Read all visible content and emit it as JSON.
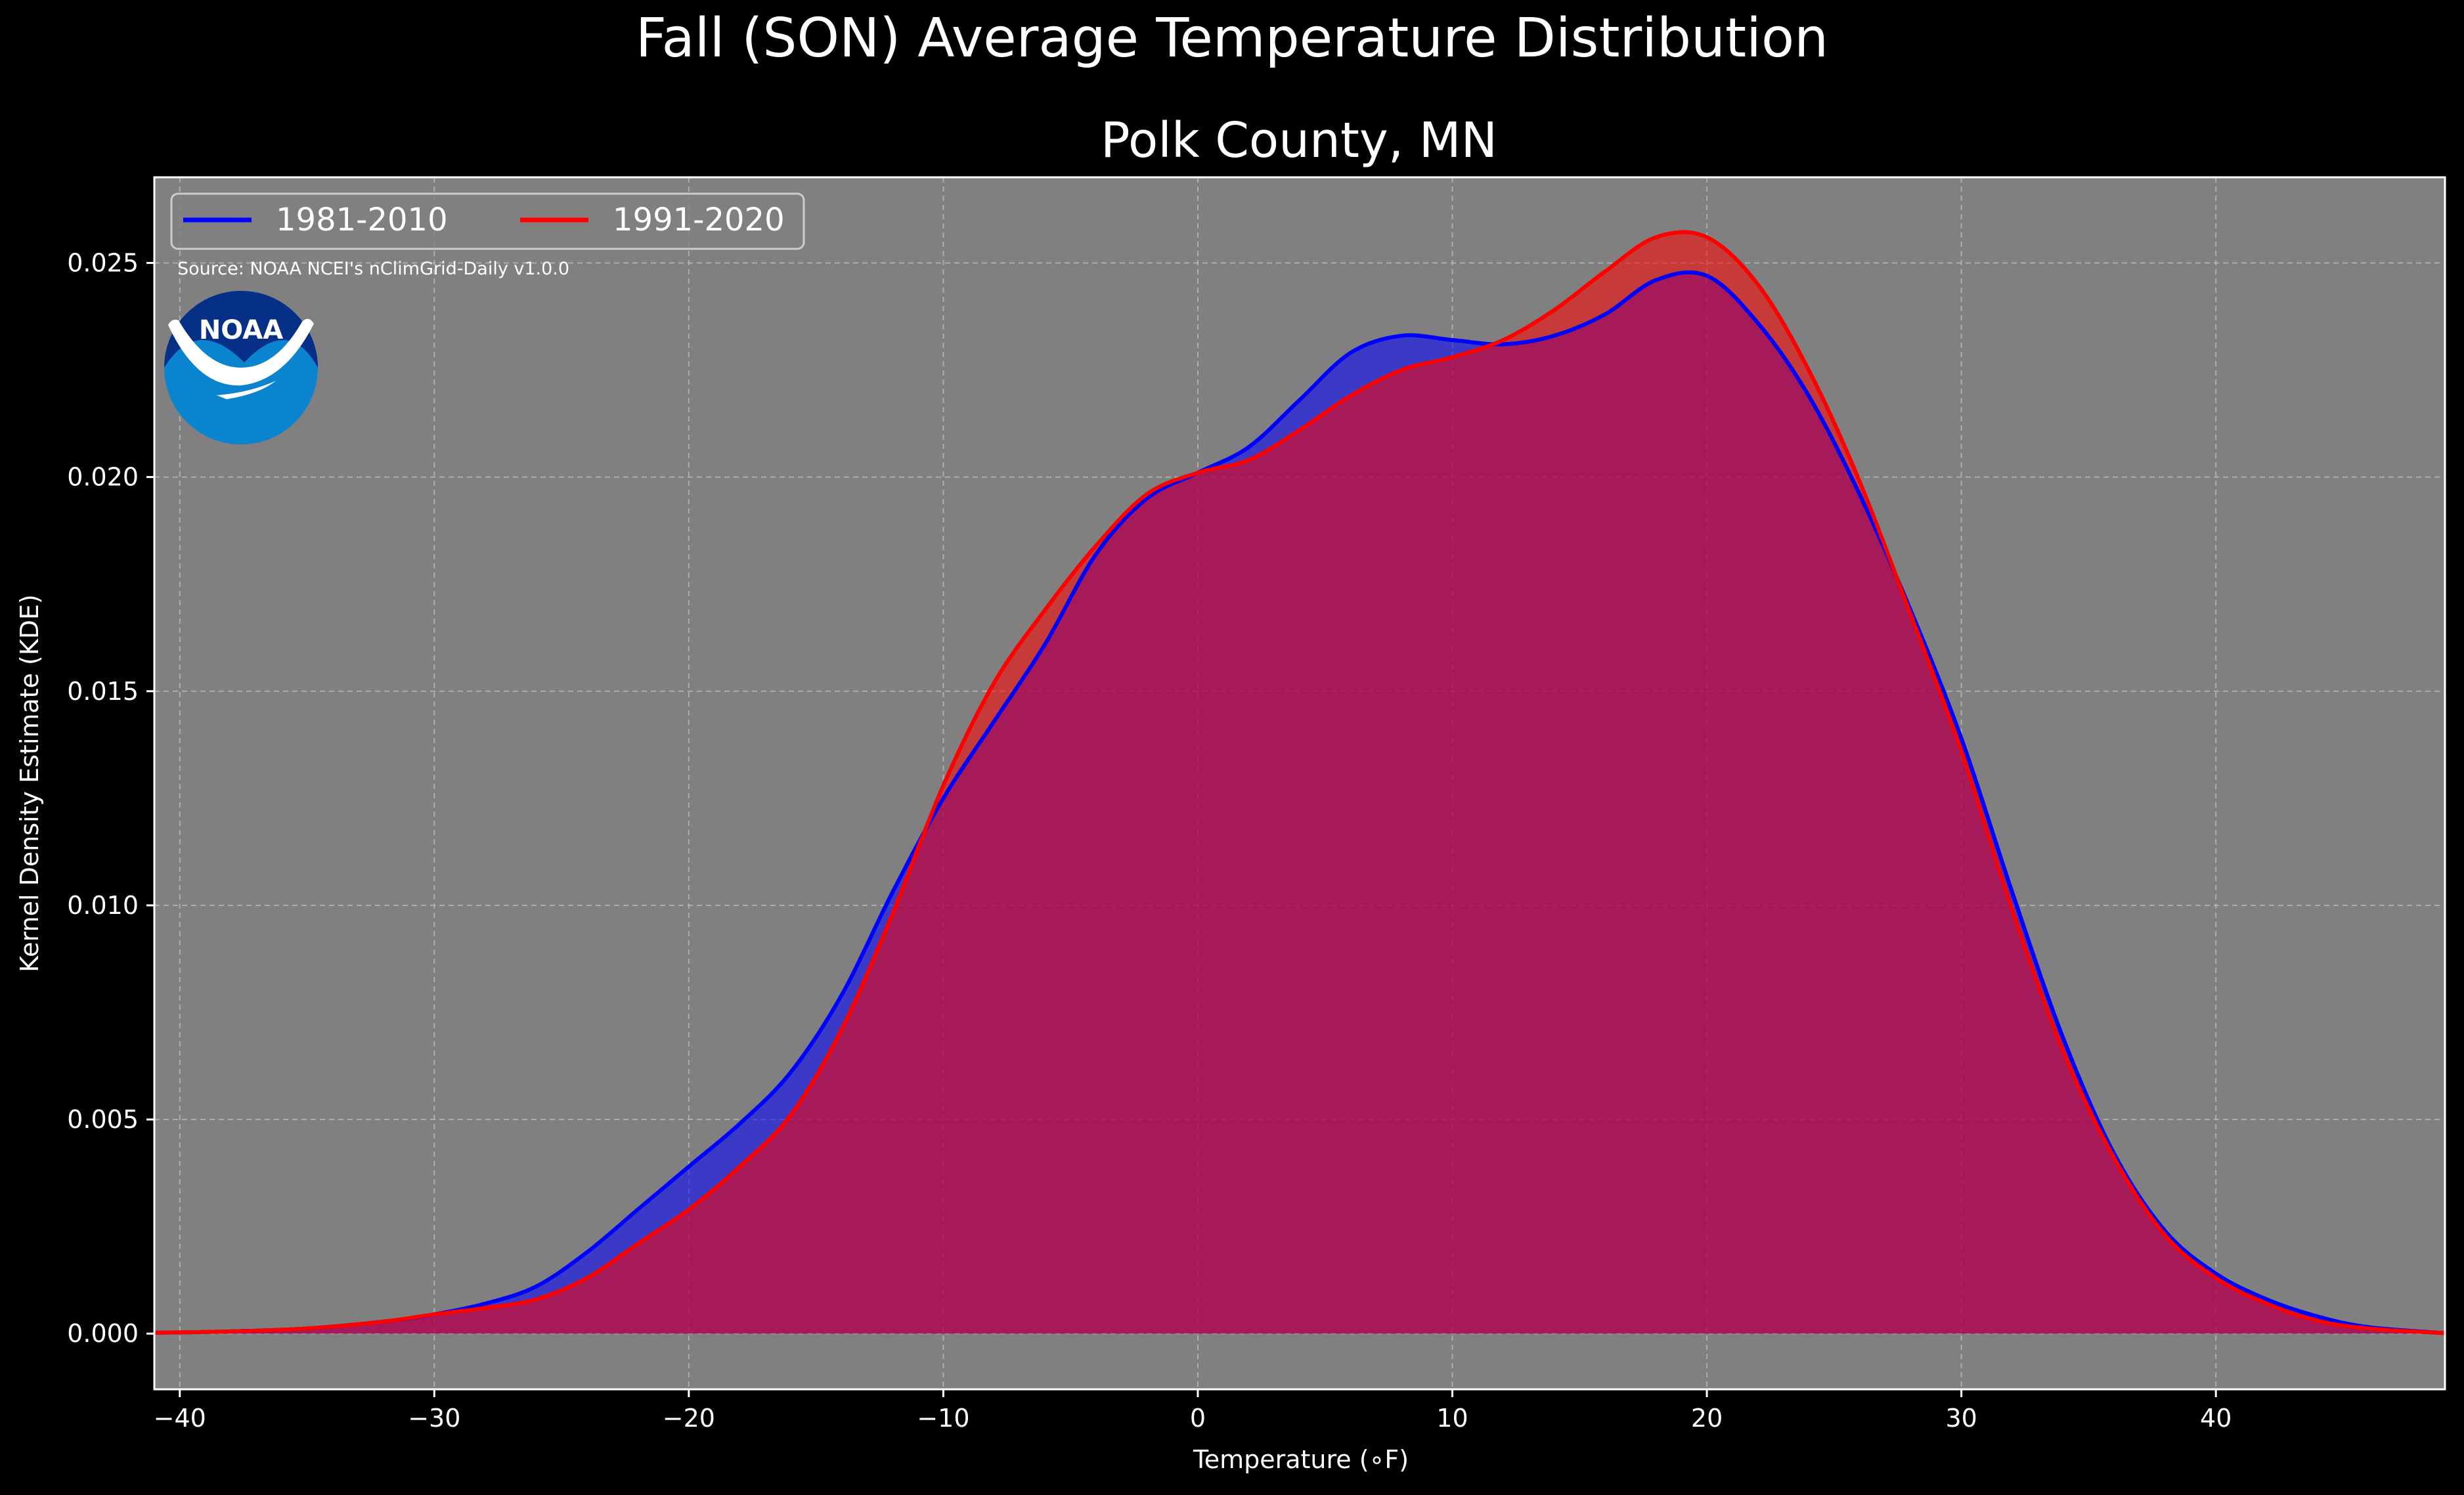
{
  "chart_data": {
    "type": "area",
    "title": "Fall (SON) Average Temperature Distribution",
    "subtitle": "Polk County, MN",
    "xlabel": "Temperature (∘F)",
    "ylabel": "Kernel Density Estimate (KDE)",
    "xlim": [
      -41,
      49
    ],
    "ylim": [
      -0.0013,
      0.027
    ],
    "xticks": [
      -40,
      -30,
      -20,
      -10,
      0,
      10,
      20,
      30,
      40
    ],
    "xtick_labels": [
      "−40",
      "−30",
      "−20",
      "−10",
      "0",
      "10",
      "20",
      "30",
      "40"
    ],
    "yticks": [
      0.0,
      0.005,
      0.01,
      0.015,
      0.02,
      0.025
    ],
    "ytick_labels": [
      "0.000",
      "0.005",
      "0.010",
      "0.015",
      "0.020",
      "0.025"
    ],
    "grid": true,
    "legend": "top-left",
    "source_note": "Source: NOAA NCEI's nClimGrid-Daily v1.0.0",
    "logo_text": "NOAA",
    "series": [
      {
        "name": "1981-2010",
        "color": "#0000ff",
        "fill": "#0000ff",
        "x": [
          -41,
          -38,
          -35,
          -32,
          -30,
          -28,
          -26,
          -24,
          -22,
          -20,
          -18,
          -16,
          -14,
          -12,
          -10,
          -8,
          -6,
          -4,
          -2,
          0,
          2,
          4,
          6,
          8,
          10,
          12,
          14,
          16,
          18,
          20,
          22,
          24,
          26,
          28,
          30,
          32,
          34,
          36,
          38,
          40,
          42,
          44,
          46,
          49
        ],
        "y": [
          2e-05,
          5e-05,
          0.00012,
          0.00028,
          0.00045,
          0.0007,
          0.0011,
          0.0019,
          0.0029,
          0.0039,
          0.0049,
          0.0061,
          0.0079,
          0.0103,
          0.0125,
          0.0143,
          0.0161,
          0.0182,
          0.0195,
          0.0201,
          0.0207,
          0.0218,
          0.0229,
          0.0233,
          0.0232,
          0.0231,
          0.0233,
          0.0238,
          0.0246,
          0.0247,
          0.0236,
          0.0219,
          0.0196,
          0.0169,
          0.0139,
          0.0103,
          0.0069,
          0.0042,
          0.0024,
          0.0014,
          0.0008,
          0.0004,
          0.00015,
          1e-05
        ]
      },
      {
        "name": "1991-2020",
        "color": "#ff0000",
        "fill": "#ff0000",
        "x": [
          -41,
          -38,
          -35,
          -32,
          -30,
          -28,
          -26,
          -24,
          -22,
          -20,
          -18,
          -16,
          -14,
          -12,
          -10,
          -8,
          -6,
          -4,
          -2,
          0,
          2,
          4,
          6,
          8,
          10,
          12,
          14,
          16,
          18,
          20,
          22,
          24,
          26,
          28,
          30,
          32,
          34,
          36,
          38,
          40,
          42,
          44,
          46,
          49
        ],
        "y": [
          2e-05,
          5e-05,
          0.00012,
          0.00028,
          0.00045,
          0.0006,
          0.0008,
          0.0013,
          0.0021,
          0.0029,
          0.0039,
          0.0051,
          0.0071,
          0.0098,
          0.0128,
          0.0152,
          0.0169,
          0.0184,
          0.0196,
          0.0201,
          0.0204,
          0.0211,
          0.0219,
          0.0225,
          0.0228,
          0.0232,
          0.0239,
          0.0248,
          0.0256,
          0.0256,
          0.0245,
          0.0225,
          0.0199,
          0.0168,
          0.0136,
          0.0099,
          0.0066,
          0.0041,
          0.0023,
          0.0013,
          0.0007,
          0.0003,
          0.00012,
          1e-05
        ]
      }
    ]
  }
}
